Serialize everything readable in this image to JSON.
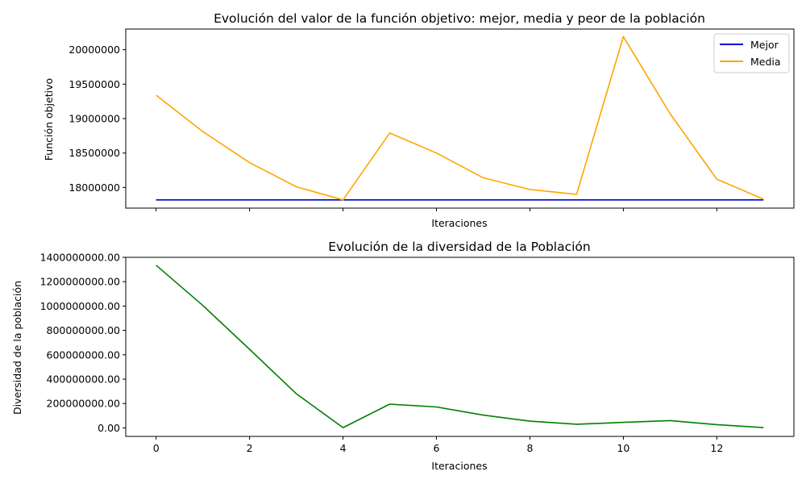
{
  "chart_data": [
    {
      "type": "line",
      "title": "Evolución del valor de la función objetivo: mejor, media y peor de la población",
      "xlabel": "Iteraciones",
      "ylabel": "Función objetivo",
      "x": [
        0,
        1,
        2,
        3,
        4,
        5,
        6,
        7,
        8,
        9,
        10,
        11,
        12,
        13
      ],
      "xlim": [
        -0.65,
        13.65
      ],
      "ylim": [
        17700000,
        20300000
      ],
      "yticks": [
        18000000,
        18500000,
        19000000,
        19500000,
        20000000
      ],
      "ytick_labels": [
        "18000000",
        "18500000",
        "19000000",
        "19500000",
        "20000000"
      ],
      "xticks_shown": false,
      "grid": false,
      "legend_position": "top-right",
      "series": [
        {
          "name": "Mejor",
          "color": "#0000cc",
          "values": [
            17820000,
            17820000,
            17820000,
            17820000,
            17820000,
            17820000,
            17820000,
            17820000,
            17820000,
            17820000,
            17820000,
            17820000,
            17820000,
            17820000
          ]
        },
        {
          "name": "Media",
          "color": "#ffa500",
          "values": [
            19340000,
            18810000,
            18360000,
            18010000,
            17820000,
            18790000,
            18500000,
            18140000,
            17970000,
            17900000,
            20190000,
            19070000,
            18120000,
            17830000
          ]
        }
      ]
    },
    {
      "type": "line",
      "title": "Evolución de la diversidad de la Población",
      "xlabel": "Iteraciones",
      "ylabel": "Diversidad de la población",
      "x": [
        0,
        1,
        2,
        3,
        4,
        5,
        6,
        7,
        8,
        9,
        10,
        11,
        12,
        13
      ],
      "xlim": [
        -0.65,
        13.65
      ],
      "ylim": [
        -70000000,
        1400000000
      ],
      "xticks": [
        0,
        2,
        4,
        6,
        8,
        10,
        12
      ],
      "xtick_labels": [
        "0",
        "2",
        "4",
        "6",
        "8",
        "10",
        "12"
      ],
      "yticks": [
        0,
        200000000,
        400000000,
        600000000,
        800000000,
        1000000000,
        1200000000,
        1400000000
      ],
      "ytick_labels": [
        "0.00",
        "200000000.00",
        "400000000.00",
        "600000000.00",
        "800000000.00",
        "1000000000.00",
        "1200000000.00",
        "1400000000.00"
      ],
      "grid": false,
      "series": [
        {
          "color": "#008000",
          "values": [
            1335000000,
            1005000000,
            645000000,
            280000000,
            2000000,
            195000000,
            172000000,
            105000000,
            55000000,
            30000000,
            45000000,
            60000000,
            27000000,
            2000000
          ]
        }
      ]
    }
  ]
}
